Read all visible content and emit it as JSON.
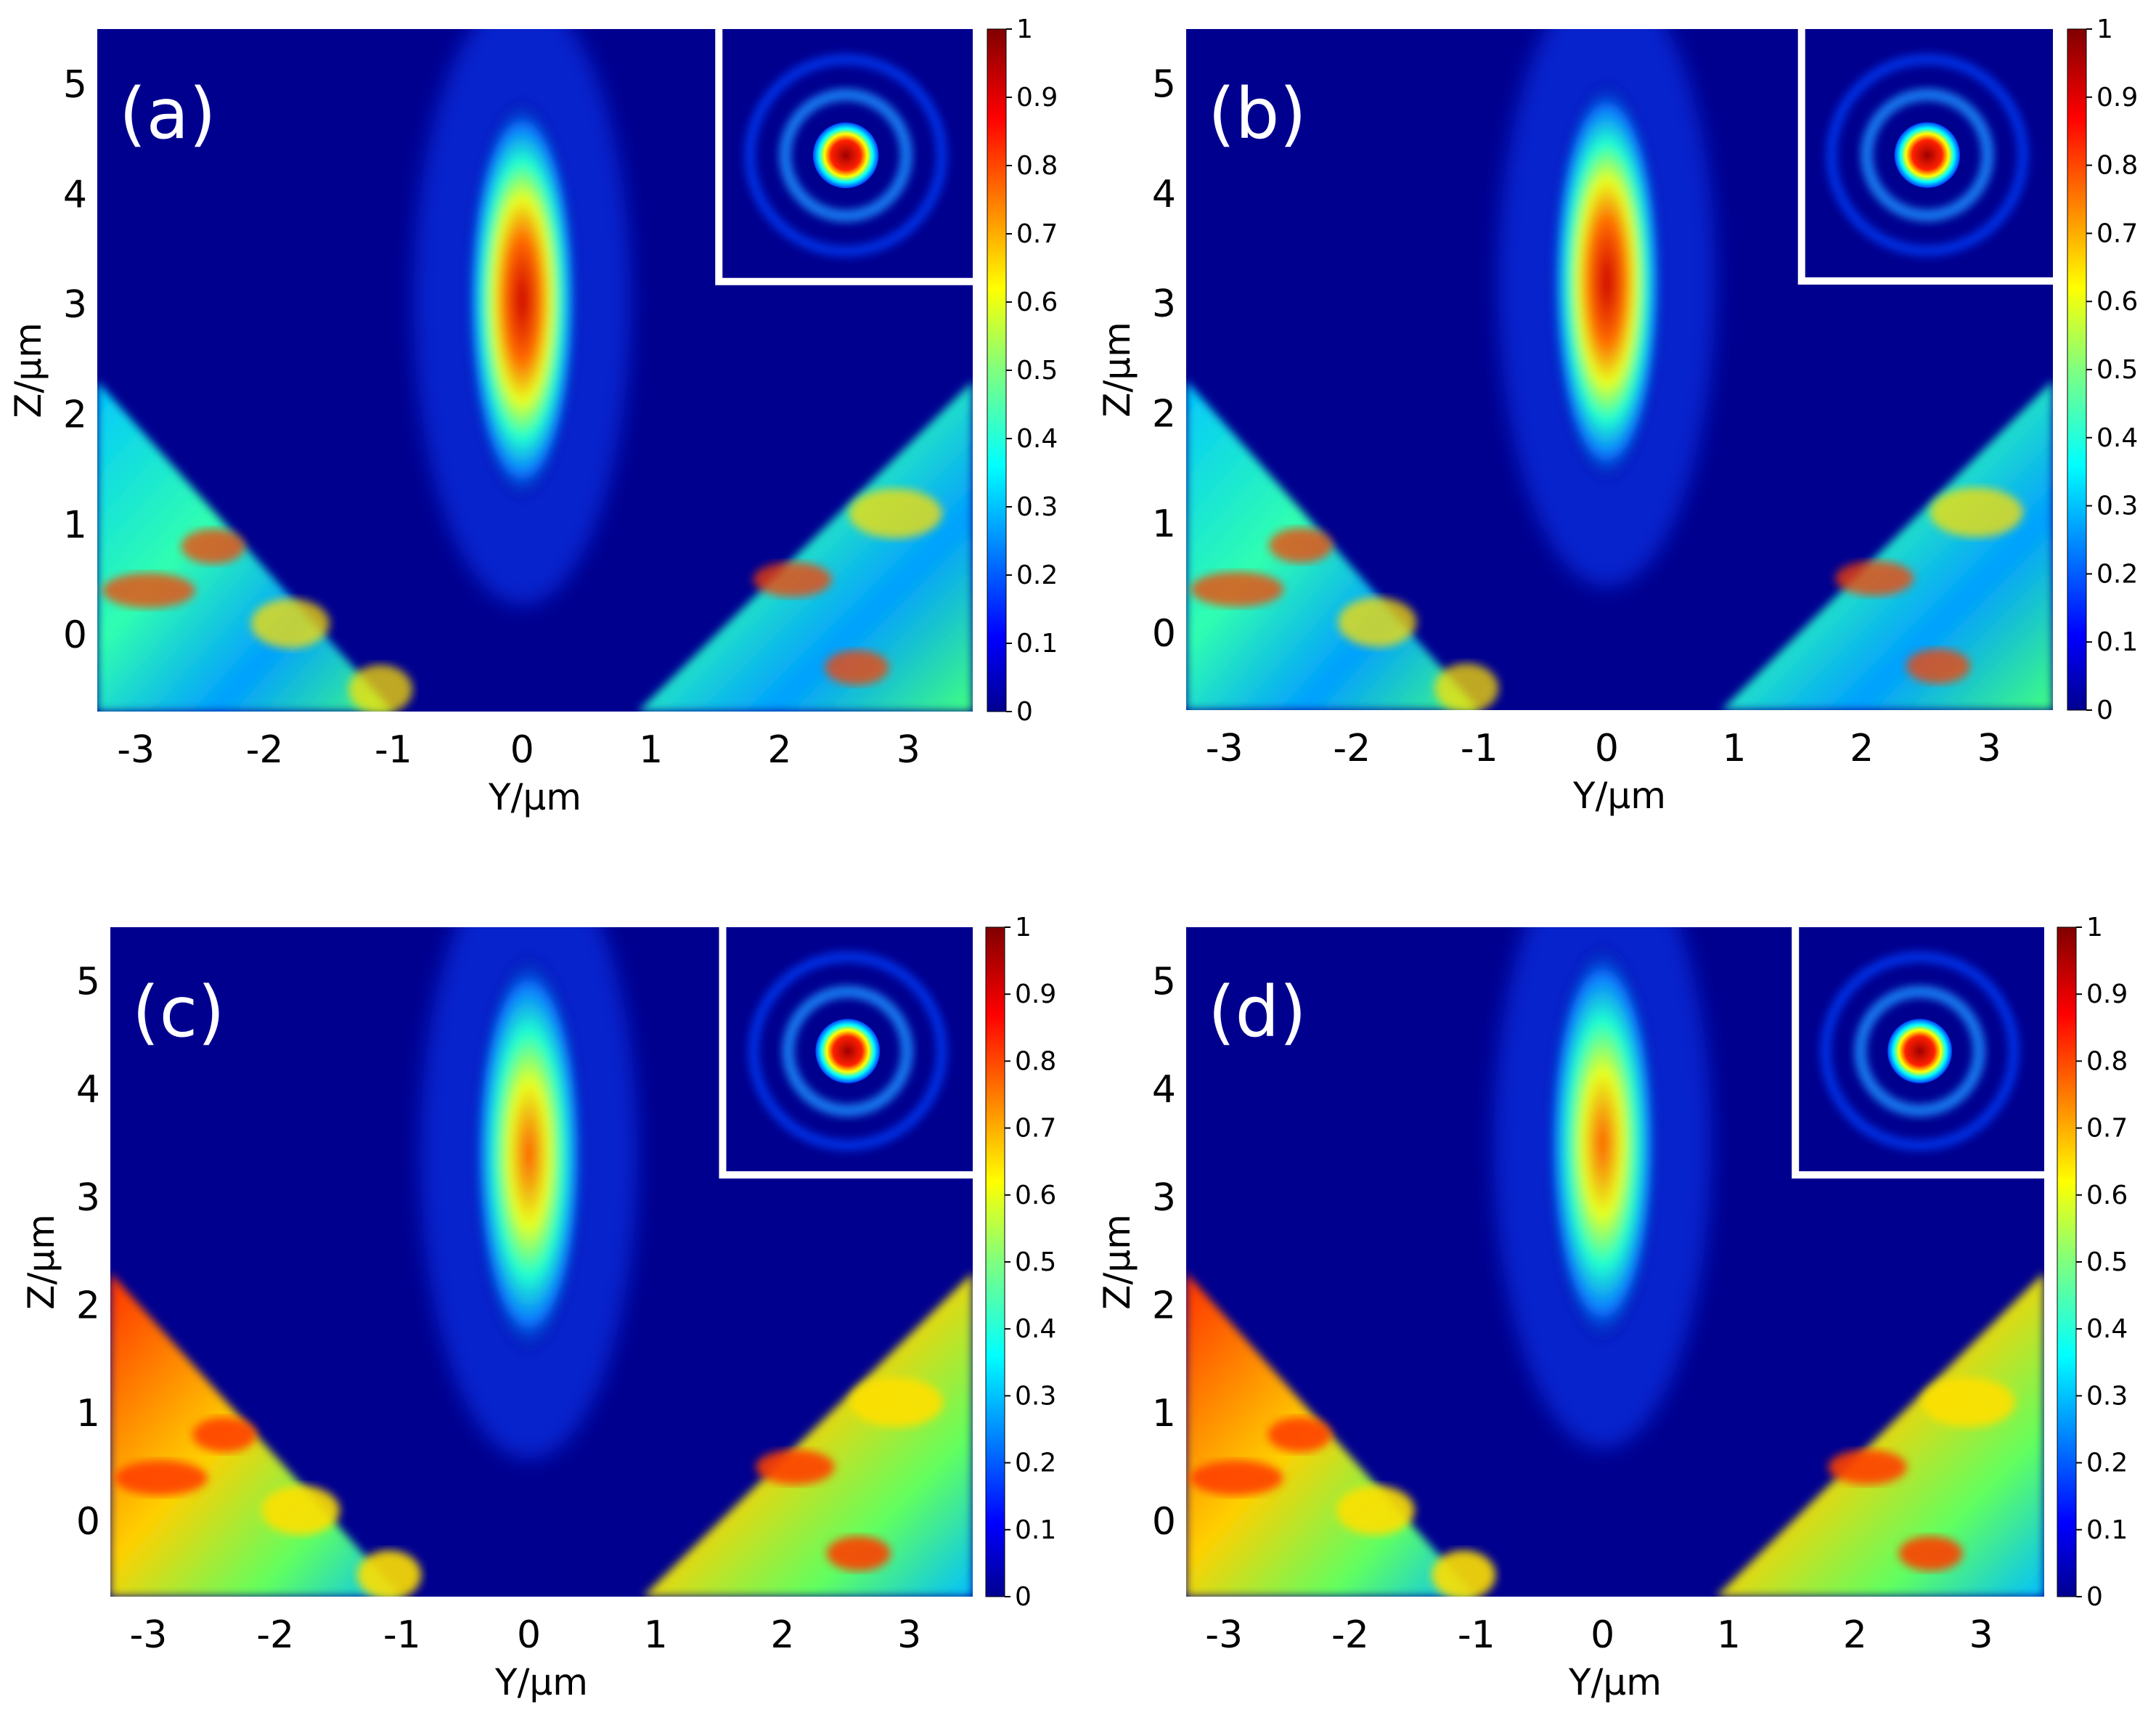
{
  "chart_data": [
    {
      "type": "heatmap",
      "panel_label": "(a)",
      "xlabel": "Y/μm",
      "ylabel": "Z/μm",
      "xticks": [
        "-3",
        "-2",
        "-1",
        "0",
        "1",
        "2",
        "3"
      ],
      "yticks": [
        "0",
        "1",
        "2",
        "3",
        "4",
        "5"
      ],
      "xlim": [
        -3.3,
        3.5
      ],
      "ylim": [
        -0.7,
        5.5
      ],
      "colorbar": {
        "range": [
          0,
          1
        ],
        "ticks": [
          "0",
          "0.1",
          "0.2",
          "0.3",
          "0.4",
          "0.5",
          "0.6",
          "0.7",
          "0.8",
          "0.9",
          "1"
        ],
        "colormap": "jet"
      },
      "focus": {
        "y": 0,
        "z": 3.0,
        "peak": 0.85
      },
      "inset": "focal spot with rings"
    },
    {
      "type": "heatmap",
      "panel_label": "(b)",
      "xlabel": "Y/μm",
      "ylabel": "Z/μm",
      "xticks": [
        "-3",
        "-2",
        "-1",
        "0",
        "1",
        "2",
        "3"
      ],
      "yticks": [
        "0",
        "1",
        "2",
        "3",
        "4",
        "5"
      ],
      "xlim": [
        -3.3,
        3.5
      ],
      "ylim": [
        -0.7,
        5.5
      ],
      "colorbar": {
        "range": [
          0,
          1
        ],
        "ticks": [
          "0",
          "0.1",
          "0.2",
          "0.3",
          "0.4",
          "0.5",
          "0.6",
          "0.7",
          "0.8",
          "0.9",
          "1"
        ],
        "colormap": "jet"
      },
      "focus": {
        "y": 0,
        "z": 3.2,
        "peak": 0.95
      },
      "inset": "focal spot with rings"
    },
    {
      "type": "heatmap",
      "panel_label": "(c)",
      "xlabel": "Y/μm",
      "ylabel": "Z/μm",
      "xticks": [
        "-3",
        "-2",
        "-1",
        "0",
        "1",
        "2",
        "3"
      ],
      "yticks": [
        "0",
        "1",
        "2",
        "3",
        "4",
        "5"
      ],
      "xlim": [
        -3.3,
        3.5
      ],
      "ylim": [
        -0.7,
        5.5
      ],
      "colorbar": {
        "range": [
          0,
          1
        ],
        "ticks": [
          "0",
          "0.1",
          "0.2",
          "0.3",
          "0.4",
          "0.5",
          "0.6",
          "0.7",
          "0.8",
          "0.9",
          "1"
        ],
        "colormap": "jet"
      },
      "focus": {
        "y": 0,
        "z": 3.4,
        "peak": 0.7
      },
      "inset": "focal spot with rings"
    },
    {
      "type": "heatmap",
      "panel_label": "(d)",
      "xlabel": "Y/μm",
      "ylabel": "Z/μm",
      "xticks": [
        "-3",
        "-2",
        "-1",
        "0",
        "1",
        "2",
        "3"
      ],
      "yticks": [
        "0",
        "1",
        "2",
        "3",
        "4",
        "5"
      ],
      "xlim": [
        -3.3,
        3.5
      ],
      "ylim": [
        -0.7,
        5.5
      ],
      "colorbar": {
        "range": [
          0,
          1
        ],
        "ticks": [
          "0",
          "0.1",
          "0.2",
          "0.3",
          "0.4",
          "0.5",
          "0.6",
          "0.7",
          "0.8",
          "0.9",
          "1"
        ],
        "colormap": "jet"
      },
      "focus": {
        "y": 0,
        "z": 3.5,
        "peak": 0.75
      },
      "inset": "focal spot with rings"
    }
  ]
}
